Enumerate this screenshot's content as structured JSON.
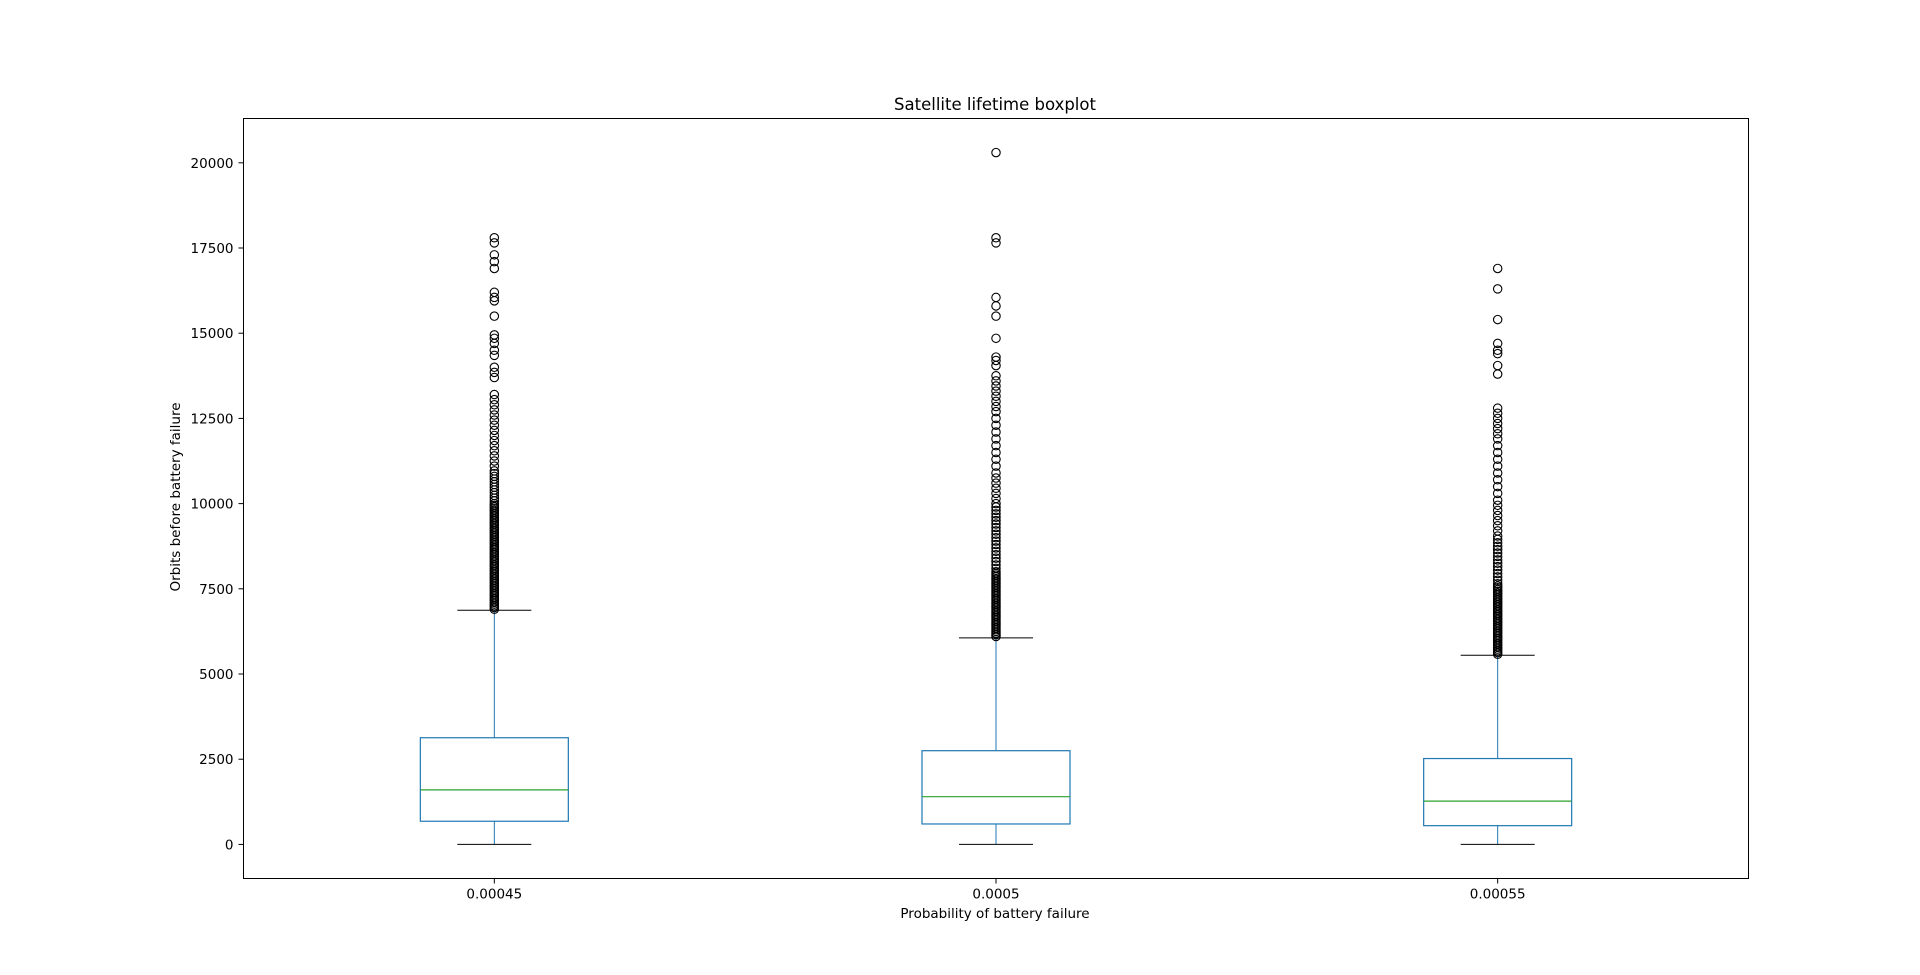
{
  "chart_data": {
    "type": "boxplot",
    "title": "Satellite lifetime boxplot",
    "xlabel": "Probability of battery failure",
    "ylabel": "Orbits before battery failure",
    "ylim": [
      -1000,
      21300
    ],
    "yticks": [
      0,
      2500,
      5000,
      7500,
      10000,
      12500,
      15000,
      17500,
      20000
    ],
    "categories": [
      "0.00045",
      "0.0005",
      "0.00055"
    ],
    "grid": false,
    "legend": "none",
    "colors": {
      "box": "#1f77b4",
      "median": "#2ca02c",
      "whisker": "#1f77b4",
      "cap": "#000000",
      "flier": "#000000"
    },
    "boxes": [
      {
        "category": "0.00045",
        "whisker_low": 0,
        "q1": 680,
        "median": 1600,
        "q3": 3130,
        "whisker_high": 6870,
        "fliers": [
          6900,
          6950,
          7000,
          7050,
          7100,
          7150,
          7200,
          7250,
          7300,
          7350,
          7400,
          7450,
          7500,
          7550,
          7600,
          7650,
          7700,
          7750,
          7800,
          7850,
          7900,
          7950,
          8000,
          8050,
          8100,
          8150,
          8200,
          8250,
          8300,
          8350,
          8400,
          8450,
          8500,
          8550,
          8600,
          8650,
          8700,
          8750,
          8800,
          8850,
          8900,
          8950,
          9000,
          9050,
          9100,
          9150,
          9200,
          9250,
          9300,
          9350,
          9400,
          9450,
          9500,
          9550,
          9600,
          9650,
          9700,
          9750,
          9800,
          9850,
          9900,
          9950,
          10000,
          10080,
          10160,
          10240,
          10320,
          10400,
          10480,
          10560,
          10640,
          10720,
          10800,
          10880,
          10960,
          11100,
          11250,
          11400,
          11550,
          11700,
          11850,
          12000,
          12150,
          12300,
          12450,
          12600,
          12750,
          12900,
          13050,
          13200,
          13700,
          13850,
          14000,
          14350,
          14500,
          14700,
          14850,
          14950,
          15500,
          15950,
          16050,
          16200,
          16900,
          17100,
          17300,
          17650,
          17800
        ]
      },
      {
        "category": "0.0005",
        "whisker_low": 0,
        "q1": 600,
        "median": 1400,
        "q3": 2750,
        "whisker_high": 6060,
        "fliers": [
          6100,
          6150,
          6200,
          6250,
          6300,
          6350,
          6400,
          6450,
          6500,
          6550,
          6600,
          6650,
          6700,
          6750,
          6800,
          6850,
          6900,
          6950,
          7000,
          7050,
          7100,
          7150,
          7200,
          7250,
          7300,
          7350,
          7400,
          7450,
          7500,
          7550,
          7600,
          7650,
          7700,
          7750,
          7800,
          7850,
          7900,
          7950,
          8000,
          8100,
          8200,
          8300,
          8400,
          8500,
          8600,
          8700,
          8800,
          8900,
          9000,
          9100,
          9200,
          9300,
          9400,
          9500,
          9600,
          9700,
          9800,
          9900,
          10000,
          10150,
          10300,
          10450,
          10600,
          10750,
          10900,
          11100,
          11300,
          11500,
          11700,
          11900,
          12100,
          12300,
          12500,
          12700,
          12850,
          13000,
          13150,
          13300,
          13450,
          13600,
          13750,
          14050,
          14200,
          14300,
          14850,
          15500,
          15800,
          16050,
          17650,
          17800,
          20300
        ]
      },
      {
        "category": "0.00055",
        "whisker_low": 0,
        "q1": 550,
        "median": 1270,
        "q3": 2520,
        "whisker_high": 5550,
        "fliers": [
          5580,
          5630,
          5680,
          5730,
          5780,
          5830,
          5880,
          5930,
          5980,
          6030,
          6080,
          6130,
          6180,
          6230,
          6280,
          6330,
          6380,
          6430,
          6480,
          6530,
          6580,
          6630,
          6680,
          6730,
          6780,
          6830,
          6880,
          6930,
          6980,
          7030,
          7080,
          7130,
          7180,
          7230,
          7280,
          7330,
          7380,
          7430,
          7480,
          7530,
          7580,
          7650,
          7750,
          7850,
          7950,
          8050,
          8150,
          8250,
          8350,
          8450,
          8550,
          8650,
          8750,
          8850,
          8950,
          9050,
          9200,
          9350,
          9500,
          9650,
          9800,
          9950,
          10100,
          10300,
          10500,
          10700,
          10900,
          11100,
          11300,
          11500,
          11700,
          11900,
          12050,
          12200,
          12350,
          12500,
          12650,
          12800,
          13800,
          14050,
          14400,
          14500,
          14700,
          15400,
          16300,
          16900
        ]
      }
    ]
  }
}
